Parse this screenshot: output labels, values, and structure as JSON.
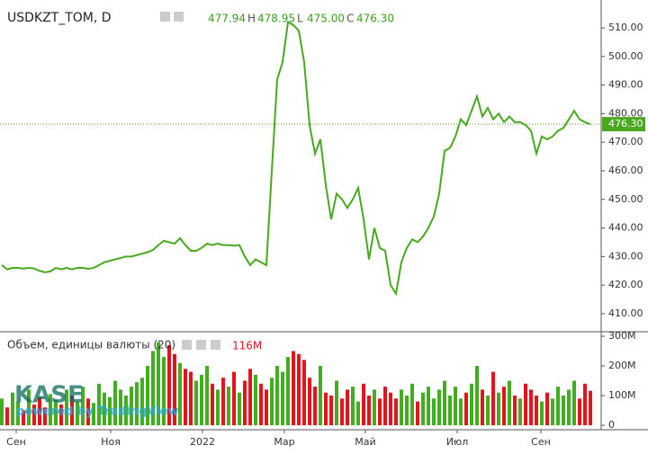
{
  "chart_data": {
    "type": "line",
    "title": "USDKZT_TOM, D",
    "ohlc": [
      {
        "key": "O",
        "value": {
          "value": 477.94,
          "label": "477.94"
        }
      },
      {
        "key": "H",
        "value": {
          "value": 478.95,
          "label": "478.95"
        }
      },
      {
        "key": "L",
        "value": {
          "value": 475.0,
          "label": "475.00"
        }
      },
      {
        "key": "C",
        "value": {
          "value": 476.3,
          "label": "476.30"
        }
      }
    ],
    "volume_legend": "Объем, единицы валюты (20)",
    "watermark": {
      "logo": "KASE",
      "text": "powered by TradingView"
    },
    "xlim": [
      -0.33,
      111
    ],
    "xticks": [
      {
        "value": 2.67,
        "label": "Сен"
      },
      {
        "value": 20.17,
        "label": "Ноя"
      },
      {
        "value": 37.17,
        "label": "2022"
      },
      {
        "value": 52.33,
        "label": "Мар"
      },
      {
        "value": 67.33,
        "label": "Май"
      },
      {
        "value": 84.33,
        "label": "Июл"
      },
      {
        "value": 99.83,
        "label": "Сен"
      }
    ],
    "ylim": [
      404,
      519.75
    ],
    "yticks": [
      {
        "value": 410,
        "label": "410.00"
      },
      {
        "value": 420,
        "label": "420.00"
      },
      {
        "value": 430,
        "label": "430.00"
      },
      {
        "value": 440,
        "label": "440.00"
      },
      {
        "value": 450,
        "label": "450.00"
      },
      {
        "value": 460,
        "label": "460.00"
      },
      {
        "value": 470,
        "label": "470.00"
      },
      {
        "value": 480,
        "label": "480.00"
      },
      {
        "value": 490,
        "label": "490.00"
      },
      {
        "value": 500,
        "label": "500.00"
      },
      {
        "value": 510,
        "label": "510.00"
      }
    ],
    "y2lim": [
      -15000000,
      312000000
    ],
    "y2ticks": [
      0,
      {
        "value": 100000000,
        "label": "100M"
      },
      {
        "value": 200000000,
        "label": "200M"
      },
      {
        "value": 300000000,
        "label": "300M"
      }
    ],
    "grid": false,
    "up_color": "#42ad1f",
    "down_color": "#e3141b",
    "series": [
      {
        "name": "USDKZT_TOM",
        "type": "line",
        "color": "#4aa820",
        "values": [
          427,
          425.5,
          426,
          426,
          425.8,
          426,
          425.8,
          425,
          424.5,
          424.8,
          426,
          425.5,
          426,
          425.5,
          426,
          426,
          425.7,
          426,
          427,
          428,
          428.5,
          429,
          429.5,
          430,
          430,
          430.5,
          431,
          431.5,
          432.3,
          434,
          435.5,
          435,
          434.5,
          436.4,
          434,
          432,
          432,
          433,
          434.5,
          434,
          434.5,
          434,
          434,
          433.8,
          434,
          430,
          427,
          429,
          428,
          427,
          460,
          492,
          498,
          512,
          511,
          509,
          498,
          476,
          466,
          471,
          455,
          443,
          452,
          450,
          447,
          450,
          454,
          443,
          429,
          440,
          433,
          432,
          420,
          417,
          428,
          433,
          436,
          435,
          437,
          440,
          444,
          452,
          467,
          468,
          472,
          478,
          476,
          481,
          486,
          479,
          482,
          478,
          480,
          477,
          479,
          477,
          477,
          476,
          474,
          466,
          472,
          471,
          472,
          474,
          475,
          478,
          481,
          478,
          477,
          476.3
        ]
      },
      {
        "name": "Объем",
        "type": "bar",
        "axis": "y2",
        "values": [
          90000000,
          60000000,
          110000000,
          80000000,
          50000000,
          120000000,
          70000000,
          95000000,
          60000000,
          105000000,
          85000000,
          70000000,
          120000000,
          100000000,
          80000000,
          130000000,
          90000000,
          75000000,
          140000000,
          110000000,
          95000000,
          150000000,
          120000000,
          100000000,
          130000000,
          145000000,
          160000000,
          200000000,
          250000000,
          280000000,
          230000000,
          270000000,
          240000000,
          210000000,
          190000000,
          180000000,
          150000000,
          170000000,
          200000000,
          140000000,
          120000000,
          160000000,
          130000000,
          180000000,
          110000000,
          150000000,
          190000000,
          170000000,
          140000000,
          120000000,
          160000000,
          200000000,
          180000000,
          230000000,
          250000000,
          240000000,
          220000000,
          160000000,
          130000000,
          200000000,
          110000000,
          100000000,
          150000000,
          90000000,
          120000000,
          130000000,
          80000000,
          140000000,
          100000000,
          120000000,
          90000000,
          130000000,
          110000000,
          90000000,
          120000000,
          100000000,
          140000000,
          80000000,
          110000000,
          130000000,
          90000000,
          120000000,
          150000000,
          100000000,
          130000000,
          90000000,
          110000000,
          140000000,
          200000000,
          120000000,
          100000000,
          180000000,
          110000000,
          130000000,
          150000000,
          100000000,
          90000000,
          140000000,
          120000000,
          100000000,
          80000000,
          110000000,
          90000000,
          130000000,
          100000000,
          120000000,
          150000000,
          90000000,
          140000000,
          116000000
        ],
        "value_labels": [
          null,
          null,
          null,
          null,
          null,
          null,
          null,
          null,
          null,
          null,
          null,
          null,
          null,
          null,
          null,
          null,
          null,
          null,
          null,
          null,
          null,
          null,
          null,
          null,
          null,
          null,
          null,
          null,
          null,
          null,
          null,
          null,
          null,
          null,
          null,
          null,
          null,
          null,
          null,
          null,
          null,
          null,
          null,
          null,
          null,
          null,
          null,
          null,
          null,
          null,
          null,
          null,
          null,
          null,
          null,
          null,
          null,
          null,
          null,
          null,
          null,
          null,
          null,
          null,
          null,
          null,
          null,
          null,
          null,
          null,
          null,
          null,
          null,
          null,
          null,
          null,
          null,
          null,
          null,
          null,
          null,
          null,
          null,
          null,
          null,
          null,
          null,
          null,
          null,
          null,
          null,
          null,
          null,
          null,
          null,
          null,
          null,
          null,
          null,
          null,
          null,
          null,
          null,
          null,
          null,
          null,
          null,
          null,
          null,
          "116M"
        ]
      }
    ]
  }
}
